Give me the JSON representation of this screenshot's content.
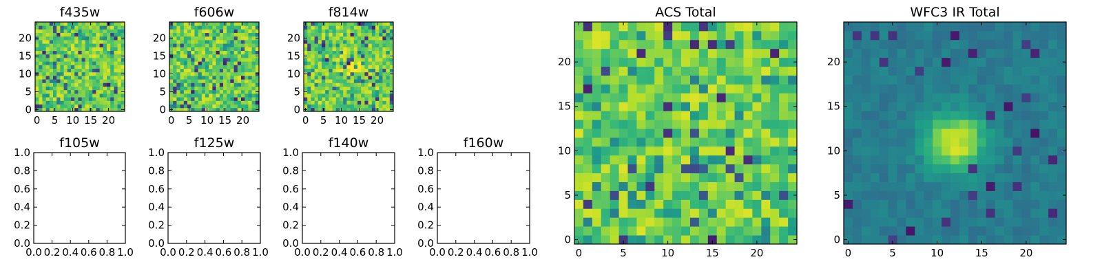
{
  "chart_data": [
    {
      "type": "heatmap",
      "title": "f435w",
      "x_ticks": [
        "0",
        "5",
        "10",
        "15",
        "20"
      ],
      "y_ticks": [
        "0",
        "5",
        "10",
        "15",
        "20"
      ],
      "xlim": [
        -0.5,
        24.5
      ],
      "ylim": [
        -0.5,
        24.5
      ],
      "grid_size": [
        25,
        25
      ],
      "colormap": "viridis",
      "description": "25x25 noise image, predominantly green-yellow with scattered dark pixels"
    },
    {
      "type": "heatmap",
      "title": "f606w",
      "x_ticks": [
        "0",
        "5",
        "10",
        "15",
        "20"
      ],
      "y_ticks": [
        "0",
        "5",
        "10",
        "15",
        "20"
      ],
      "xlim": [
        -0.5,
        24.5
      ],
      "ylim": [
        -0.5,
        24.5
      ],
      "grid_size": [
        25,
        25
      ],
      "colormap": "viridis",
      "description": "25x25 noise image, predominantly green-yellow with scattered dark pixels"
    },
    {
      "type": "heatmap",
      "title": "f814w",
      "x_ticks": [
        "0",
        "5",
        "10",
        "15",
        "20"
      ],
      "y_ticks": [
        "0",
        "5",
        "10",
        "15",
        "20"
      ],
      "xlim": [
        -0.5,
        24.5
      ],
      "ylim": [
        -0.5,
        24.5
      ],
      "grid_size": [
        25,
        25
      ],
      "colormap": "viridis",
      "description": "25x25 noise image with a faint bright source near the center"
    },
    {
      "type": "empty",
      "title": "f105w",
      "x_ticks": [
        "0.0",
        "0.2",
        "0.4",
        "0.6",
        "0.8",
        "1.0"
      ],
      "y_ticks": [
        "0.0",
        "0.2",
        "0.4",
        "0.6",
        "0.8",
        "1.0"
      ],
      "xlim": [
        0,
        1
      ],
      "ylim": [
        0,
        1
      ]
    },
    {
      "type": "empty",
      "title": "f125w",
      "x_ticks": [
        "0.0",
        "0.2",
        "0.4",
        "0.6",
        "0.8",
        "1.0"
      ],
      "y_ticks": [
        "0.0",
        "0.2",
        "0.4",
        "0.6",
        "0.8",
        "1.0"
      ],
      "xlim": [
        0,
        1
      ],
      "ylim": [
        0,
        1
      ]
    },
    {
      "type": "empty",
      "title": "f140w",
      "x_ticks": [
        "0.0",
        "0.2",
        "0.4",
        "0.6",
        "0.8",
        "1.0"
      ],
      "y_ticks": [
        "0.0",
        "0.2",
        "0.4",
        "0.6",
        "0.8",
        "1.0"
      ],
      "xlim": [
        0,
        1
      ],
      "ylim": [
        0,
        1
      ]
    },
    {
      "type": "empty",
      "title": "f160w",
      "x_ticks": [
        "0.0",
        "0.2",
        "0.4",
        "0.6",
        "0.8",
        "1.0"
      ],
      "y_ticks": [
        "0.0",
        "0.2",
        "0.4",
        "0.6",
        "0.8",
        "1.0"
      ],
      "xlim": [
        0,
        1
      ],
      "ylim": [
        0,
        1
      ]
    },
    {
      "type": "heatmap",
      "title": "ACS Total",
      "x_ticks": [
        "0",
        "5",
        "10",
        "15",
        "20"
      ],
      "y_ticks": [
        "0",
        "5",
        "10",
        "15",
        "20"
      ],
      "xlim": [
        -0.5,
        24.5
      ],
      "ylim": [
        -0.5,
        24.5
      ],
      "grid_size": [
        25,
        25
      ],
      "colormap": "viridis",
      "description": "Sum of ACS bands: green-yellow noise with brighter region around x~13, y~12"
    },
    {
      "type": "heatmap",
      "title": "WFC3 IR Total",
      "x_ticks": [
        "0",
        "5",
        "10",
        "15",
        "20"
      ],
      "y_ticks": [
        "0",
        "5",
        "10",
        "15",
        "20"
      ],
      "xlim": [
        -0.5,
        24.5
      ],
      "ylim": [
        -0.5,
        24.5
      ],
      "grid_size": [
        25,
        25
      ],
      "colormap": "viridis",
      "description": "Smooth teal background with a bright yellow source centered near x~12, y~11"
    }
  ]
}
